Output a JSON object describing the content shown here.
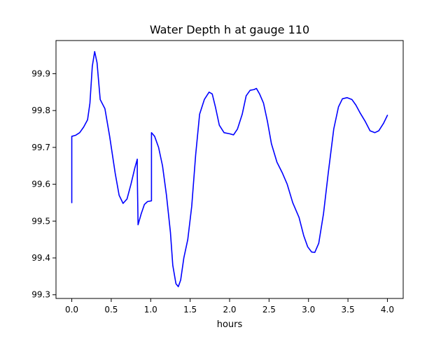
{
  "chart_data": {
    "type": "line",
    "title": "Water Depth h at gauge 110",
    "xlabel": "hours",
    "ylabel": "",
    "xlim": [
      -0.2,
      4.2
    ],
    "ylim": [
      99.29,
      99.99
    ],
    "xticks": [
      {
        "value": 0.0,
        "label": "0.0"
      },
      {
        "value": 0.5,
        "label": "0.5"
      },
      {
        "value": 1.0,
        "label": "1.0"
      },
      {
        "value": 1.5,
        "label": "1.5"
      },
      {
        "value": 2.0,
        "label": "2.0"
      },
      {
        "value": 2.5,
        "label": "2.5"
      },
      {
        "value": 3.0,
        "label": "3.0"
      },
      {
        "value": 3.5,
        "label": "3.5"
      },
      {
        "value": 4.0,
        "label": "4.0"
      }
    ],
    "yticks": [
      {
        "value": 99.3,
        "label": "99.3"
      },
      {
        "value": 99.4,
        "label": "99.4"
      },
      {
        "value": 99.5,
        "label": "99.5"
      },
      {
        "value": 99.6,
        "label": "99.6"
      },
      {
        "value": 99.7,
        "label": "99.7"
      },
      {
        "value": 99.8,
        "label": "99.8"
      },
      {
        "value": 99.9,
        "label": "99.9"
      }
    ],
    "grid": false,
    "legend": "none",
    "series": [
      {
        "color": "#0000ff",
        "points": [
          [
            0.0,
            99.55
          ],
          [
            0.0,
            99.73
          ],
          [
            0.05,
            99.733
          ],
          [
            0.1,
            99.74
          ],
          [
            0.15,
            99.755
          ],
          [
            0.2,
            99.775
          ],
          [
            0.23,
            99.82
          ],
          [
            0.26,
            99.92
          ],
          [
            0.29,
            99.96
          ],
          [
            0.32,
            99.93
          ],
          [
            0.36,
            99.83
          ],
          [
            0.42,
            99.805
          ],
          [
            0.48,
            99.73
          ],
          [
            0.55,
            99.63
          ],
          [
            0.6,
            99.57
          ],
          [
            0.65,
            99.548
          ],
          [
            0.7,
            99.56
          ],
          [
            0.75,
            99.6
          ],
          [
            0.8,
            99.645
          ],
          [
            0.83,
            99.668
          ],
          [
            0.83,
            99.63
          ],
          [
            0.84,
            99.49
          ],
          [
            0.88,
            99.52
          ],
          [
            0.92,
            99.545
          ],
          [
            0.96,
            99.553
          ],
          [
            1.01,
            99.555
          ],
          [
            1.01,
            99.74
          ],
          [
            1.05,
            99.73
          ],
          [
            1.1,
            99.7
          ],
          [
            1.15,
            99.65
          ],
          [
            1.2,
            99.57
          ],
          [
            1.25,
            99.47
          ],
          [
            1.28,
            99.38
          ],
          [
            1.32,
            99.33
          ],
          [
            1.35,
            99.322
          ],
          [
            1.38,
            99.34
          ],
          [
            1.42,
            99.4
          ],
          [
            1.47,
            99.45
          ],
          [
            1.52,
            99.54
          ],
          [
            1.57,
            99.68
          ],
          [
            1.62,
            99.79
          ],
          [
            1.68,
            99.83
          ],
          [
            1.74,
            99.85
          ],
          [
            1.78,
            99.845
          ],
          [
            1.82,
            99.81
          ],
          [
            1.87,
            99.76
          ],
          [
            1.93,
            99.74
          ],
          [
            2.0,
            99.737
          ],
          [
            2.05,
            99.734
          ],
          [
            2.1,
            99.75
          ],
          [
            2.16,
            99.79
          ],
          [
            2.21,
            99.84
          ],
          [
            2.26,
            99.855
          ],
          [
            2.31,
            99.857
          ],
          [
            2.34,
            99.86
          ],
          [
            2.38,
            99.845
          ],
          [
            2.43,
            99.82
          ],
          [
            2.48,
            99.77
          ],
          [
            2.53,
            99.71
          ],
          [
            2.6,
            99.66
          ],
          [
            2.67,
            99.63
          ],
          [
            2.73,
            99.6
          ],
          [
            2.8,
            99.55
          ],
          [
            2.88,
            99.51
          ],
          [
            2.94,
            99.46
          ],
          [
            2.99,
            99.43
          ],
          [
            3.04,
            99.416
          ],
          [
            3.08,
            99.415
          ],
          [
            3.13,
            99.44
          ],
          [
            3.19,
            99.52
          ],
          [
            3.25,
            99.63
          ],
          [
            3.32,
            99.75
          ],
          [
            3.38,
            99.81
          ],
          [
            3.43,
            99.832
          ],
          [
            3.49,
            99.835
          ],
          [
            3.55,
            99.83
          ],
          [
            3.6,
            99.815
          ],
          [
            3.65,
            99.795
          ],
          [
            3.72,
            99.77
          ],
          [
            3.78,
            99.745
          ],
          [
            3.84,
            99.74
          ],
          [
            3.89,
            99.745
          ],
          [
            3.95,
            99.765
          ],
          [
            4.0,
            99.787
          ]
        ]
      }
    ]
  }
}
